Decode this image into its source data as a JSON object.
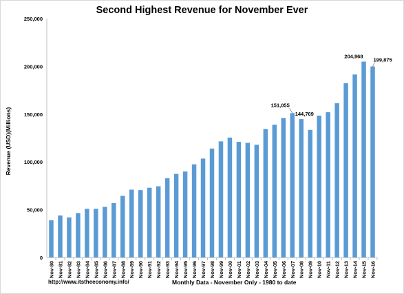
{
  "chart_data": {
    "type": "bar",
    "title": "Second Highest Revenue for November Ever",
    "xlabel": "Monthly Data - November Only - 1980 to date",
    "ylabel": "Revenue (USD)(Millions)",
    "source_note": "http://www.itstheeconomy.info/",
    "ylim": [
      0,
      250000
    ],
    "yticks": [
      0,
      50000,
      100000,
      150000,
      200000,
      250000
    ],
    "ytick_labels": [
      "0",
      "50,000",
      "100,000",
      "150,000",
      "200,000",
      "250,000"
    ],
    "grid": false,
    "legend": "none",
    "bar_color": "#5b9bd5",
    "categories": [
      "Nov-80",
      "Nov-81",
      "Nov-82",
      "Nov-83",
      "Nov-84",
      "Nov-85",
      "Nov-86",
      "Nov-87",
      "Nov-88",
      "Nov-89",
      "Nov-90",
      "Nov-91",
      "Nov-92",
      "Nov-93",
      "Nov-94",
      "Nov-95",
      "Nov-96",
      "Nov-97",
      "Nov-98",
      "Nov-99",
      "Nov-00",
      "Nov-01",
      "Nov-02",
      "Nov-03",
      "Nov-04",
      "Nov-05",
      "Nov-06",
      "Nov-07",
      "Nov-08",
      "Nov-09",
      "Nov-10",
      "Nov-11",
      "Nov-12",
      "Nov-13",
      "Nov-14",
      "Nov-15",
      "Nov-16"
    ],
    "values": [
      39000,
      44000,
      42000,
      46500,
      51000,
      51000,
      53000,
      57000,
      64500,
      71000,
      70500,
      73000,
      74500,
      83000,
      87500,
      90000,
      97500,
      103500,
      114000,
      121500,
      125500,
      121000,
      120000,
      118000,
      134500,
      139000,
      146000,
      151055,
      144769,
      133500,
      148500,
      152000,
      161500,
      182500,
      191500,
      204968,
      199875
    ],
    "data_labels": [
      {
        "index": 27,
        "text": "151,055"
      },
      {
        "index": 28,
        "text": "144,769"
      },
      {
        "index": 35,
        "text": "204,968"
      },
      {
        "index": 36,
        "text": "199,875"
      }
    ]
  }
}
